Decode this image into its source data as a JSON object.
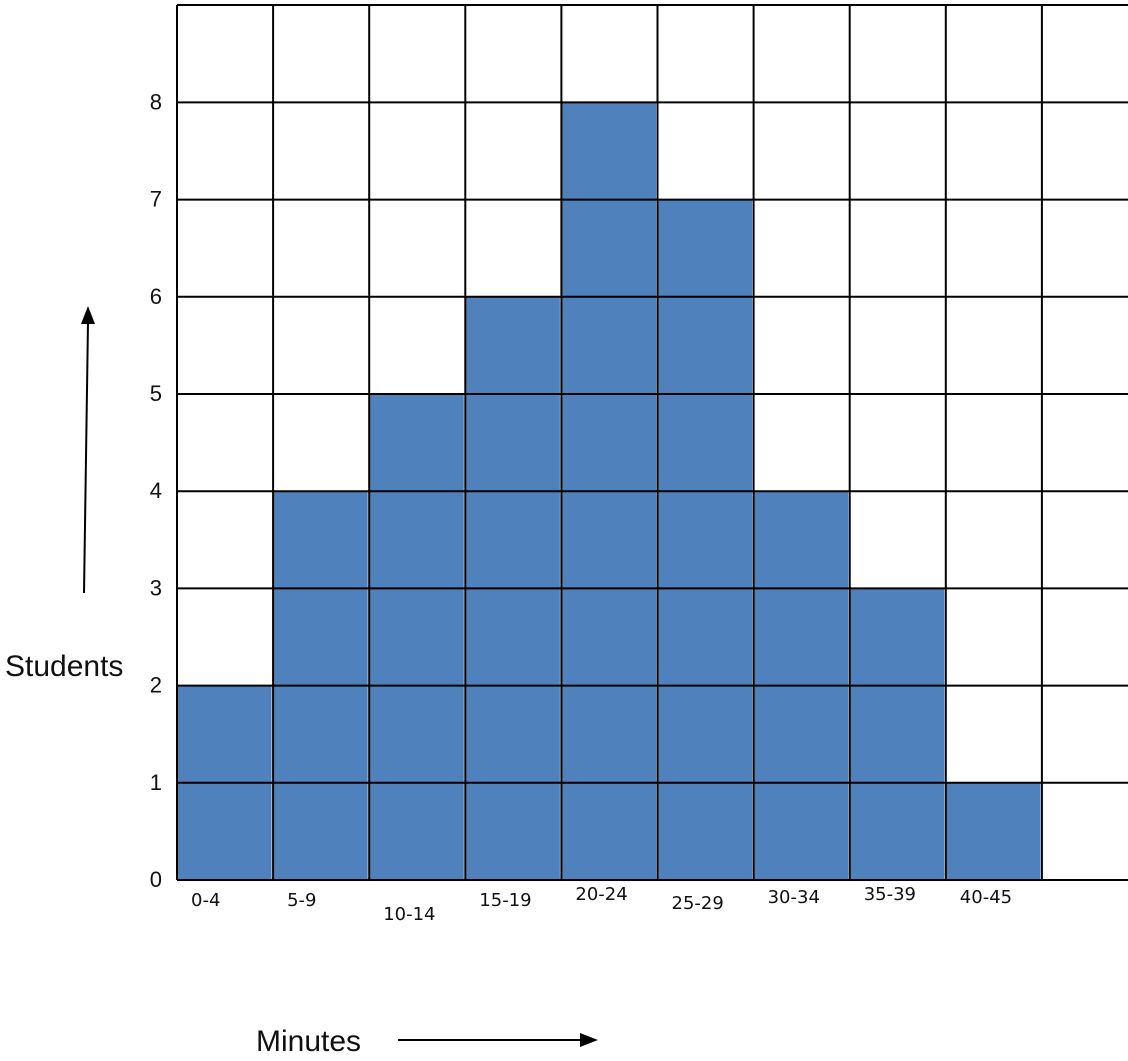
{
  "chart_data": {
    "type": "bar",
    "categories": [
      "0-4",
      "5-9",
      "10-14",
      "15-19",
      "20-24",
      "25-29",
      "30-34",
      "35-39",
      "40-45"
    ],
    "values": [
      2,
      4,
      5,
      6,
      8,
      7,
      4,
      3,
      1
    ],
    "xlabel": "Minutes",
    "ylabel": "Students",
    "yticks": [
      "0",
      "1",
      "2",
      "3",
      "4",
      "5",
      "6",
      "7",
      "8"
    ],
    "ylim": [
      0,
      8
    ],
    "grid": true,
    "bar_color": "#4f81bd",
    "grid_color": "#000000"
  }
}
